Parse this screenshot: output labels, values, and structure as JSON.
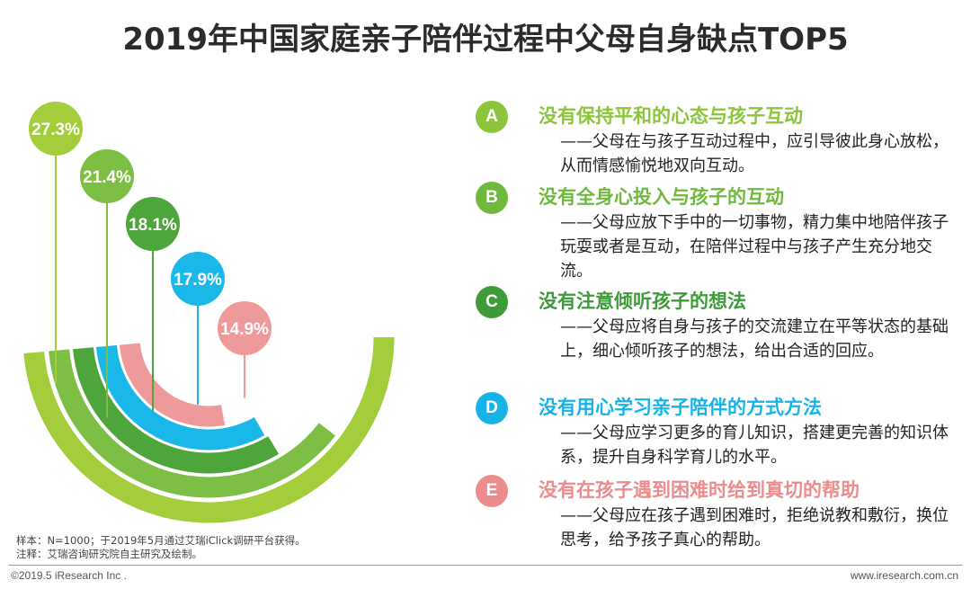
{
  "title": "2019年中国家庭亲子陪伴过程中父母自身缺点TOP5",
  "chart_data": {
    "type": "bar",
    "categories": [
      "没有保持平和的心态与孩子互动",
      "没有全身心投入与孩子的互动",
      "没有注意倾听孩子的想法",
      "没有用心学习亲子陪伴的方式方法",
      "没有在孩子遇到困难时给到真切的帮助"
    ],
    "values": [
      27.3,
      21.4,
      18.1,
      17.9,
      14.9
    ],
    "value_labels": [
      "27.3%",
      "21.4%",
      "18.1%",
      "17.9%",
      "14.9%"
    ],
    "colors": [
      "#a3cd3b",
      "#7cbf44",
      "#4ea53b",
      "#1ab8e8",
      "#ef9a9a"
    ],
    "unit": "%"
  },
  "items": [
    {
      "letter": "A",
      "title": "没有保持平和的心态与孩子互动",
      "desc": "——父母在与孩子互动过程中，应引导彼此身心放松，从而情感愉悦地双向互动。",
      "color": "#8cc43c"
    },
    {
      "letter": "B",
      "title": "没有全身心投入与孩子的互动",
      "desc": "——父母应放下手中的一切事物，精力集中地陪伴孩子玩耍或者是互动，在陪伴过程中与孩子产生充分地交流。",
      "color": "#6fb93f"
    },
    {
      "letter": "C",
      "title": "没有注意倾听孩子的想法",
      "desc": "——父母应将自身与孩子的交流建立在平等状态的基础上，细心倾听孩子的想法，给出合适的回应。",
      "color": "#3e9b3a"
    },
    {
      "letter": "D",
      "title": "没有用心学习亲子陪伴的方式方法",
      "desc": "——父母应学习更多的育儿知识，搭建更完善的知识体系，提升自身科学育儿的水平。",
      "color": "#17b3e6"
    },
    {
      "letter": "E",
      "title": "没有在孩子遇到困难时给到真切的帮助",
      "desc": "——父母应在孩子遇到困难时，拒绝说教和敷衍，换位思考，给予孩子真心的帮助。",
      "color": "#ec8c8c"
    }
  ],
  "notes": {
    "sample": "样本：N=1000；于2019年5月通过艾瑞iClick调研平台获得。",
    "annotation": "注释：艾瑞咨询研究院自主研究及绘制。"
  },
  "footer": {
    "copyright": "©2019.5 iResearch Inc .",
    "website": "www.iresearch.com.cn"
  }
}
